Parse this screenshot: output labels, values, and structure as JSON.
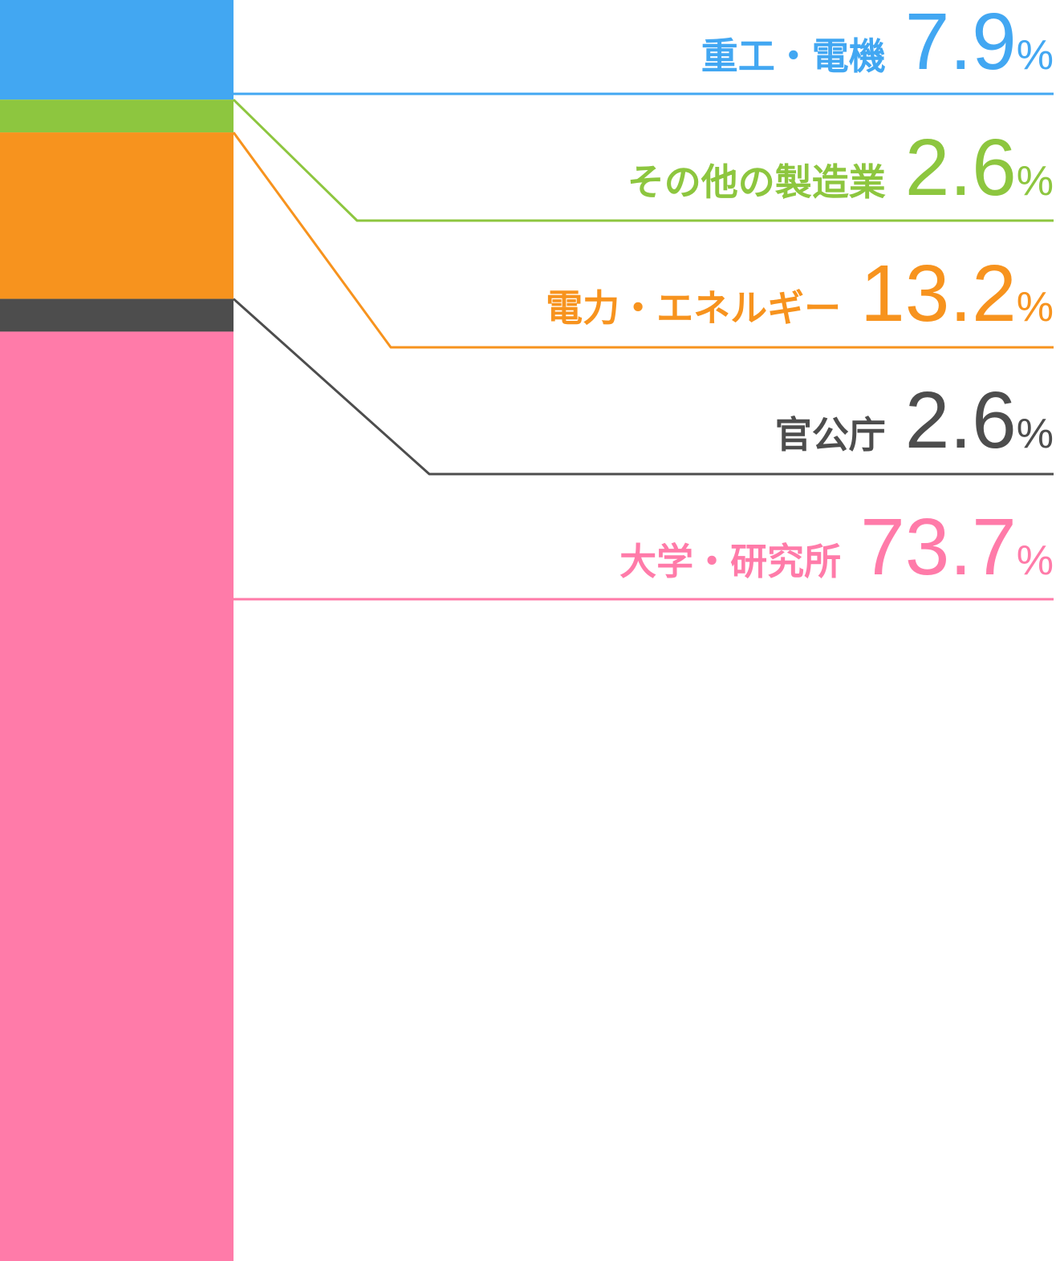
{
  "chart_data": {
    "type": "bar",
    "orientation": "stacked-vertical",
    "title": "",
    "unit": "%",
    "series": [
      {
        "name": "重工・電機",
        "value": 7.9,
        "value_label": "7.9",
        "color": "#42A7F2"
      },
      {
        "name": "その他の製造業",
        "value": 2.6,
        "value_label": "2.6",
        "color": "#8DC63F"
      },
      {
        "name": "電力・エネルギー",
        "value": 13.2,
        "value_label": "13.2",
        "color": "#F7931E"
      },
      {
        "name": "官公庁",
        "value": 2.6,
        "value_label": "2.6",
        "color": "#4D4D4D"
      },
      {
        "name": "大学・研究所",
        "value": 73.7,
        "value_label": "73.7",
        "color": "#FF7BA9"
      }
    ],
    "total": 100.0,
    "legend_placement": "right"
  }
}
